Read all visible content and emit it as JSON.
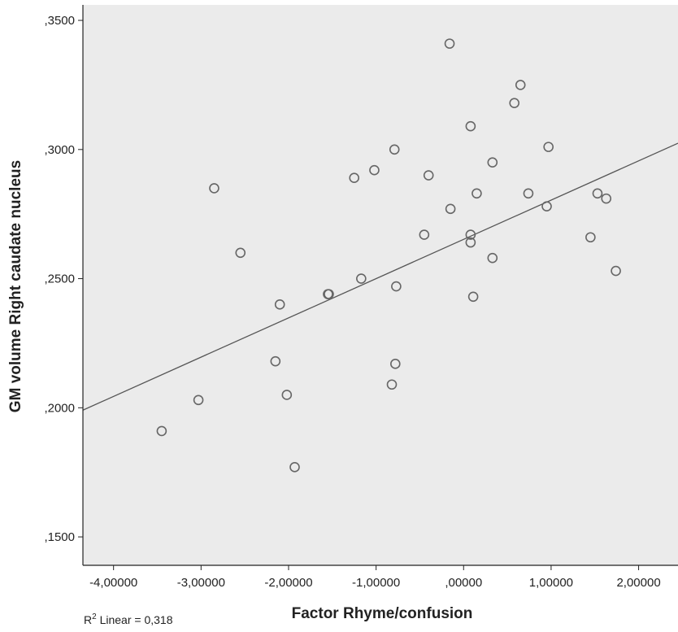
{
  "chart_data": {
    "type": "scatter",
    "xlabel": "Factor Rhyme/confusion",
    "ylabel": "GM volume Right caudate nucleus",
    "xlim": [
      -4.35,
      2.45
    ],
    "ylim": [
      0.139,
      0.356
    ],
    "x_ticks": [
      -4,
      -3,
      -2,
      -1,
      0,
      1,
      2
    ],
    "x_tick_labels": [
      "-4,00000",
      "-3,00000",
      "-2,00000",
      "-1,00000",
      ",00000",
      "1,00000",
      "2,00000"
    ],
    "y_ticks": [
      0.15,
      0.2,
      0.25,
      0.3,
      0.35
    ],
    "y_tick_labels": [
      ",1500",
      ",2000",
      ",2500",
      ",3000",
      ",3500"
    ],
    "grid": false,
    "colors": {
      "plot_background": "#ebebeb",
      "marker_edge": "#666666",
      "fit_line": "#555555"
    },
    "r2_label": "R",
    "r2_superscript": "2",
    "r2_text": " Linear = 0,318",
    "fit_line": {
      "slope": 0.0152,
      "intercept": 0.2652
    },
    "points": [
      {
        "x": -3.45,
        "y": 0.191
      },
      {
        "x": -3.03,
        "y": 0.203
      },
      {
        "x": -2.85,
        "y": 0.285
      },
      {
        "x": -2.55,
        "y": 0.26
      },
      {
        "x": -2.15,
        "y": 0.218
      },
      {
        "x": -2.1,
        "y": 0.24
      },
      {
        "x": -2.02,
        "y": 0.205
      },
      {
        "x": -1.93,
        "y": 0.177
      },
      {
        "x": -1.55,
        "y": 0.244
      },
      {
        "x": -1.54,
        "y": 0.244
      },
      {
        "x": -1.25,
        "y": 0.289
      },
      {
        "x": -1.17,
        "y": 0.25
      },
      {
        "x": -1.02,
        "y": 0.292
      },
      {
        "x": -0.82,
        "y": 0.209
      },
      {
        "x": -0.79,
        "y": 0.3
      },
      {
        "x": -0.78,
        "y": 0.217
      },
      {
        "x": -0.77,
        "y": 0.247
      },
      {
        "x": -0.45,
        "y": 0.267
      },
      {
        "x": -0.4,
        "y": 0.29
      },
      {
        "x": -0.16,
        "y": 0.341
      },
      {
        "x": -0.15,
        "y": 0.277
      },
      {
        "x": 0.08,
        "y": 0.309
      },
      {
        "x": 0.08,
        "y": 0.267
      },
      {
        "x": 0.08,
        "y": 0.264
      },
      {
        "x": 0.11,
        "y": 0.243
      },
      {
        "x": 0.15,
        "y": 0.283
      },
      {
        "x": 0.33,
        "y": 0.295
      },
      {
        "x": 0.33,
        "y": 0.258
      },
      {
        "x": 0.58,
        "y": 0.318
      },
      {
        "x": 0.65,
        "y": 0.325
      },
      {
        "x": 0.74,
        "y": 0.283
      },
      {
        "x": 0.95,
        "y": 0.278
      },
      {
        "x": 0.97,
        "y": 0.301
      },
      {
        "x": 1.45,
        "y": 0.266
      },
      {
        "x": 1.53,
        "y": 0.283
      },
      {
        "x": 1.63,
        "y": 0.281
      },
      {
        "x": 1.74,
        "y": 0.253
      }
    ]
  }
}
